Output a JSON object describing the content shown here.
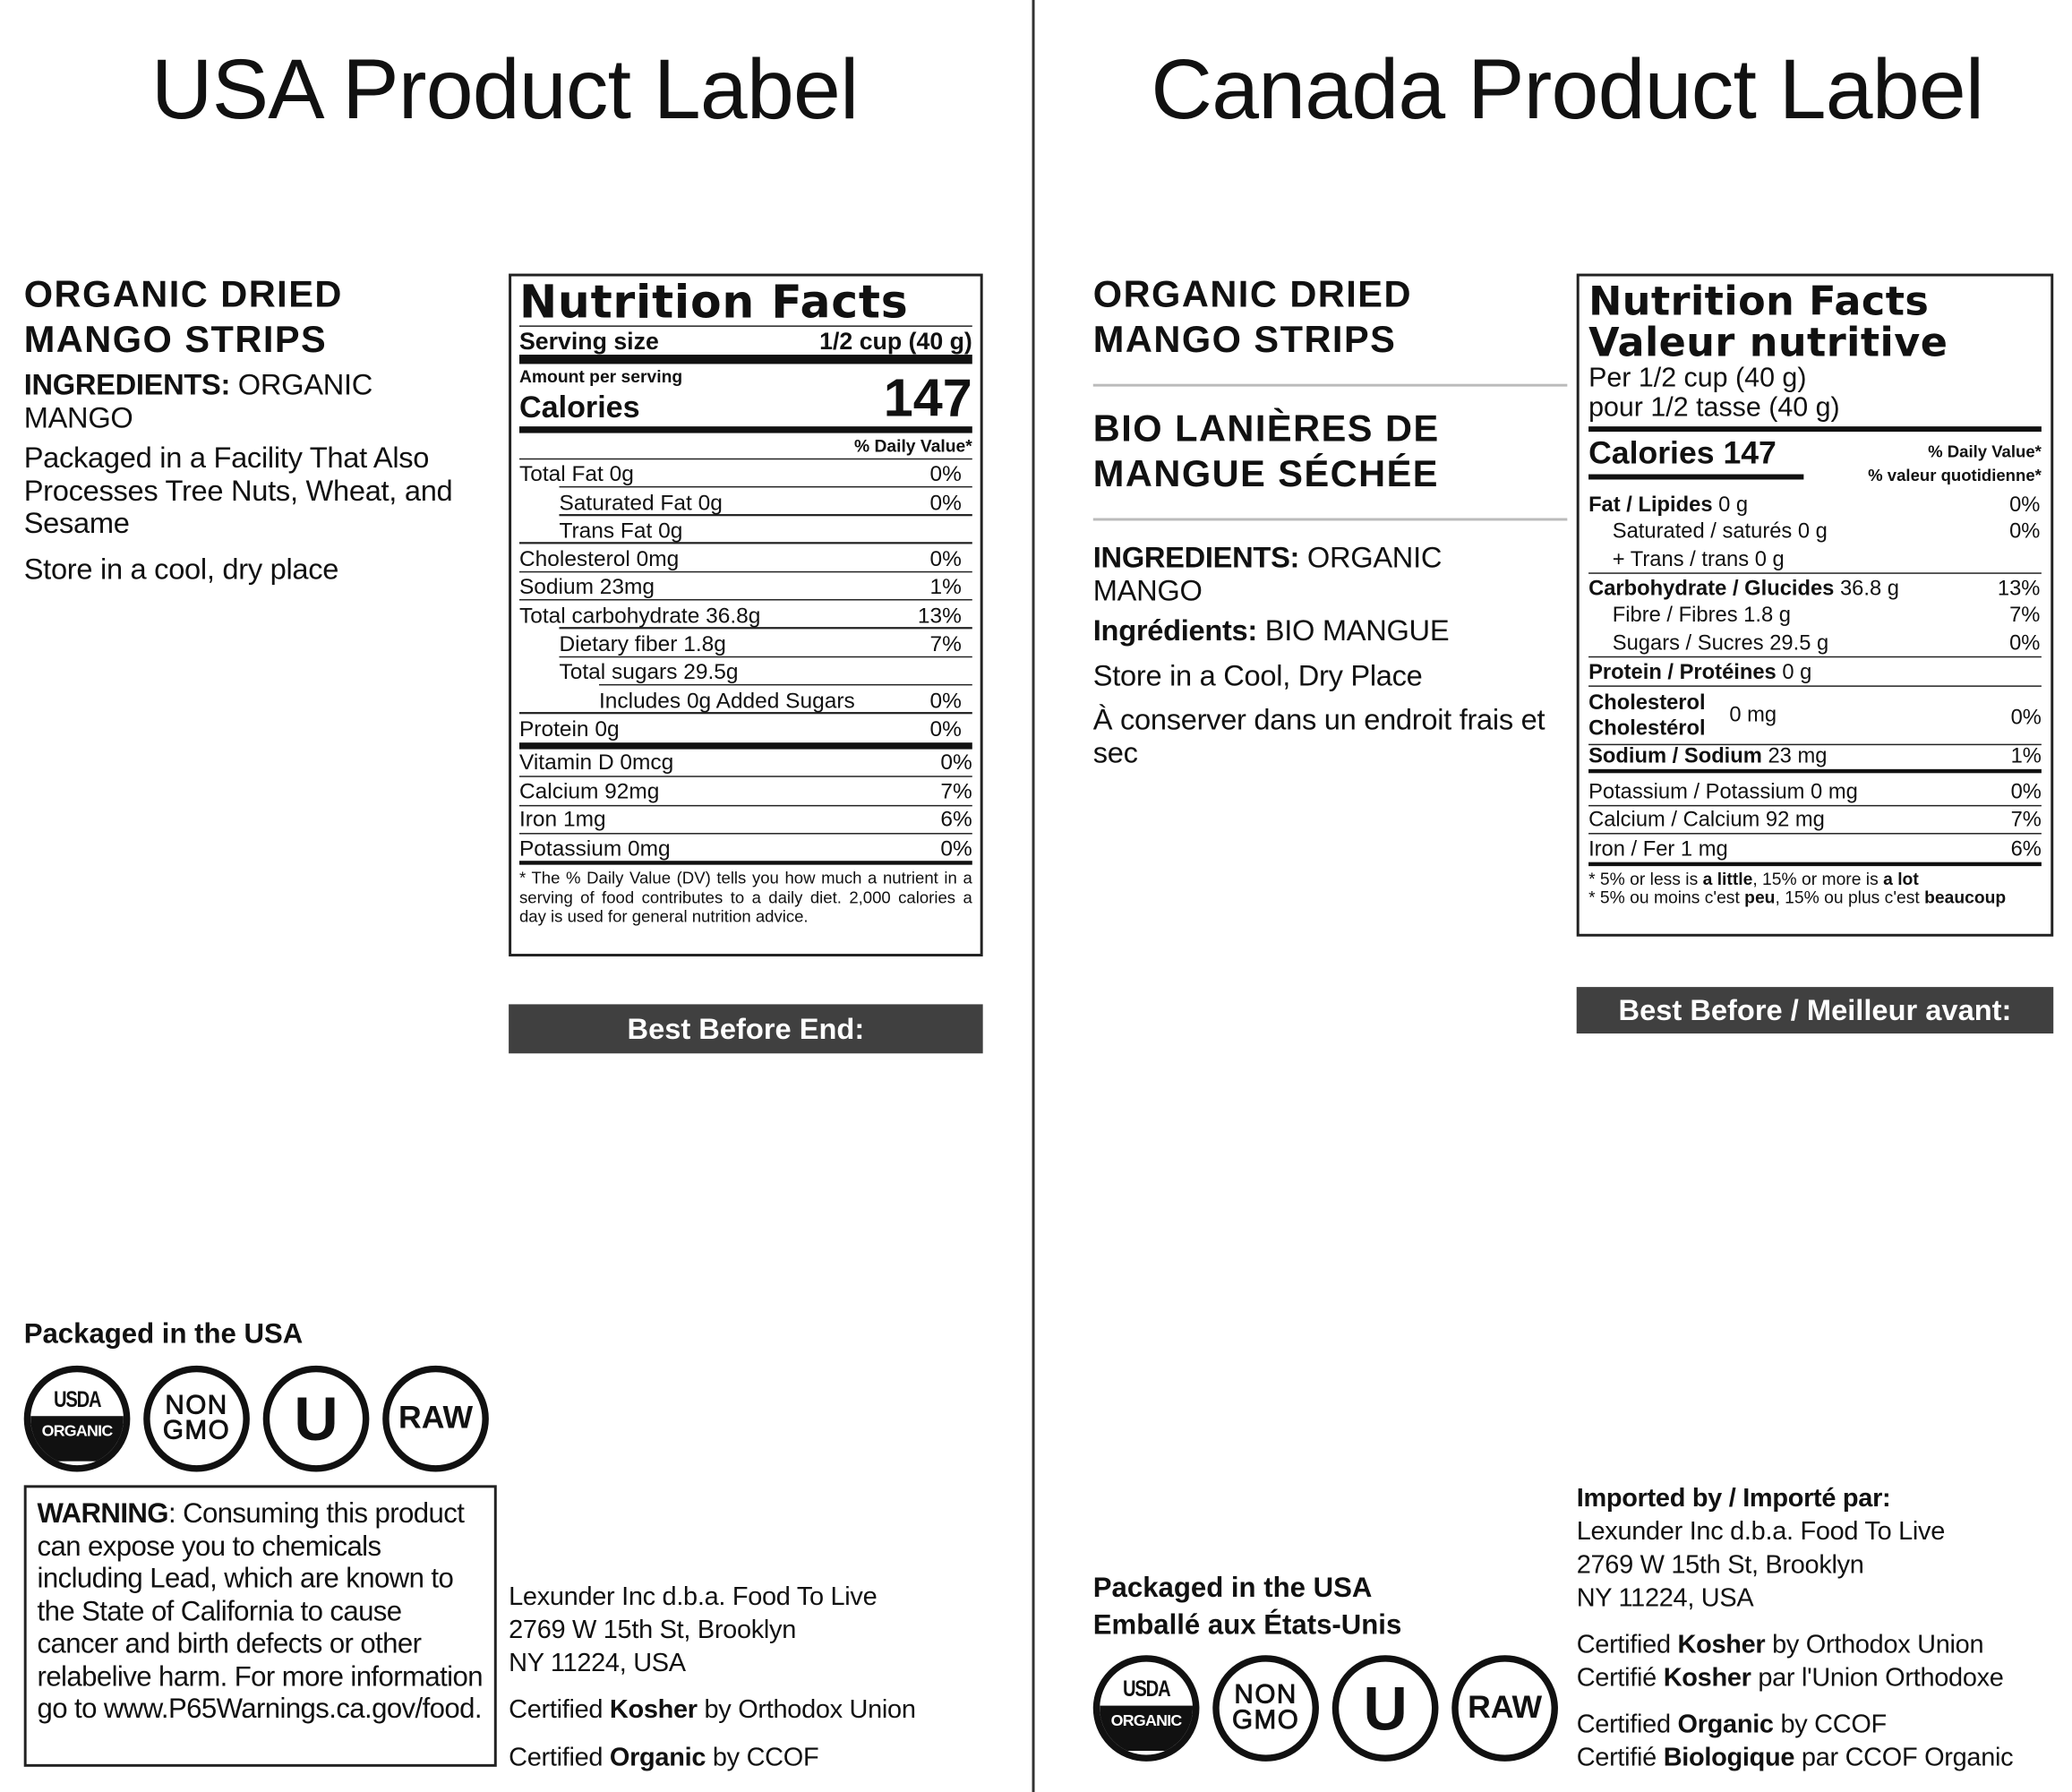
{
  "usa": {
    "title": "USA Product Label",
    "product_name": [
      "ORGANIC DRIED",
      "MANGO STRIPS"
    ],
    "ingredients_label": "INGREDIENTS:",
    "ingredients_value": " ORGANIC MANGO",
    "allergen": "Packaged in a Facility That Also Processes Tree Nuts, Wheat, and Sesame",
    "storage": "Store in a cool, dry place",
    "nutrition": {
      "title": "Nutrition Facts",
      "serving_label": "Serving size",
      "serving_value": "1/2 cup (40 g)",
      "amount_per_serving": "Amount per serving",
      "calories_label": "Calories",
      "calories_value": "147",
      "dv_header": "% Daily Value*",
      "rows": [
        {
          "label": "Total Fat  0g",
          "dv": "0%",
          "indent": 0
        },
        {
          "label": "Saturated Fat 0g",
          "dv": "0%",
          "indent": 1
        },
        {
          "label": "Trans Fat 0g",
          "dv": "",
          "indent": 1
        },
        {
          "label": "Cholesterol  0mg",
          "dv": "0%",
          "indent": 0
        },
        {
          "label": "Sodium  23mg",
          "dv": "1%",
          "indent": 0
        },
        {
          "label": "Total carbohydrate  36.8g",
          "dv": "13%",
          "indent": 0
        },
        {
          "label": "Dietary fiber 1.8g",
          "dv": "7%",
          "indent": 1
        },
        {
          "label": "Total sugars 29.5g",
          "dv": "",
          "indent": 1
        },
        {
          "label": "Includes 0g Added Sugars",
          "dv": "0%",
          "indent": 2
        },
        {
          "label": "Protein  0g",
          "dv": "0%",
          "indent": 0
        }
      ],
      "vitamins": [
        {
          "label": "Vitamin D 0mcg",
          "dv": "0%"
        },
        {
          "label": "Calcium 92mg",
          "dv": "7%"
        },
        {
          "label": "Iron 1mg",
          "dv": "6%"
        },
        {
          "label": "Potassium 0mg",
          "dv": "0%"
        }
      ],
      "footnote": "* The % Daily Value (DV) tells you how much a nutrient in a serving of food contributes to a daily diet. 2,000 calories a day is used for general nutrition advice."
    },
    "best_before": "Best Before End:",
    "packaged": "Packaged in the USA",
    "warning": {
      "label": "WARNING",
      "text": ": Consuming this product can expose you to chemicals including Lead, which are known to the State of California to cause cancer and birth defects or other relabelive harm. For more information go to www.P65Warnings.ca.gov/food."
    },
    "address": [
      "Lexunder Inc d.b.a. Food To Live",
      "2769 W 15th St, Brooklyn",
      "NY 11224, USA"
    ],
    "certs": [
      {
        "pre": "Certified ",
        "bold": "Kosher",
        "post": " by Orthodox Union"
      },
      {
        "pre": "Certified ",
        "bold": "Organic",
        "post": " by CCOF"
      }
    ]
  },
  "canada": {
    "title": "Canada Product Label",
    "product_name": [
      "ORGANIC DRIED",
      "MANGO STRIPS"
    ],
    "product_name_fr": [
      "BIO LANIÈRES DE",
      "MANGUE SÉCHÉE"
    ],
    "ingredients_label": "INGREDIENTS:",
    "ingredients_value": " ORGANIC MANGO",
    "ingredients_fr_label": "Ingrédients:",
    "ingredients_fr_value": " BIO MANGUE",
    "storage": "Store in a Cool, Dry Place",
    "storage_fr": "À conserver dans un endroit frais et sec",
    "nutrition": {
      "title": "Nutrition Facts",
      "title_fr": "Valeur nutritive",
      "serving": "Per 1/2 cup (40 g)",
      "serving_fr": "pour 1/2 tasse (40 g)",
      "calories": "Calories 147",
      "dv_header": "% Daily Value*",
      "dv_header_fr": "% valeur quotidienne*",
      "rows": [
        {
          "bold": "Fat / Lipides",
          "normal": " 0 g",
          "dv": "0%",
          "indent": 0,
          "line": ""
        },
        {
          "bold": "",
          "normal": "Saturated / saturés 0 g",
          "dv": "0%",
          "indent": 1,
          "line": ""
        },
        {
          "bold": "",
          "normal": "+ Trans / trans 0 g",
          "dv": "",
          "indent": 1,
          "line": "thin"
        },
        {
          "bold": "Carbohydrate / Glucides",
          "normal": " 36.8 g",
          "dv": "13%",
          "indent": 0,
          "line": ""
        },
        {
          "bold": "",
          "normal": "Fibre / Fibres 1.8 g",
          "dv": "7%",
          "indent": 1,
          "line": ""
        },
        {
          "bold": "",
          "normal": "Sugars / Sucres 29.5 g",
          "dv": "0%",
          "indent": 1,
          "line": "thin"
        },
        {
          "bold": "Protein / Protéines",
          "normal": " 0 g",
          "dv": "",
          "indent": 0,
          "line": "thin"
        }
      ],
      "cholesterol": {
        "bold": "Cholesterol",
        "bold_fr": "Cholestérol",
        "amount": "0 mg",
        "dv": "0%"
      },
      "sodium": {
        "bold": "Sodium / Sodium",
        "normal": " 23 mg",
        "dv": "1%"
      },
      "minerals": [
        {
          "label": "Potassium / Potassium 0 mg",
          "dv": "0%"
        },
        {
          "label": "Calcium / Calcium 92 mg",
          "dv": "7%"
        },
        {
          "label": "Iron / Fer 1 mg",
          "dv": "6%"
        }
      ],
      "footnote": {
        "en_pre": "* 5% or less is ",
        "en_b1": "a little",
        "en_mid": ", 15% or more is ",
        "en_b2": "a lot",
        "fr_pre": "* 5% ou moins c'est ",
        "fr_b1": "peu",
        "fr_mid": ", 15% ou plus c'est ",
        "fr_b2": "beaucoup"
      }
    },
    "best_before": "Best Before / Meilleur avant:",
    "imported_by": "Imported by / Importé par:",
    "address": [
      "Lexunder Inc d.b.a. Food To Live",
      "2769 W 15th St, Brooklyn",
      "NY 11224, USA"
    ],
    "certs": [
      {
        "pre": "Certified ",
        "bold": "Kosher",
        "post": " by Orthodox Union"
      },
      {
        "pre": "Certifié ",
        "bold": "Kosher",
        "post": " par l'Union Orthodoxe"
      },
      {
        "pre": "Certified ",
        "bold": "Organic",
        "post": " by CCOF"
      },
      {
        "pre": "Certifié ",
        "bold": "Biologique",
        "post": " par CCOF Organic"
      }
    ],
    "packaged": "Packaged in the USA",
    "packaged_fr": "Emballé aux États-Unis"
  },
  "logos": {
    "usda_top": "USDA",
    "usda_bottom": "ORGANIC",
    "nongmo": [
      "NON",
      "GMO"
    ],
    "ou": "U",
    "raw": "RAW"
  }
}
